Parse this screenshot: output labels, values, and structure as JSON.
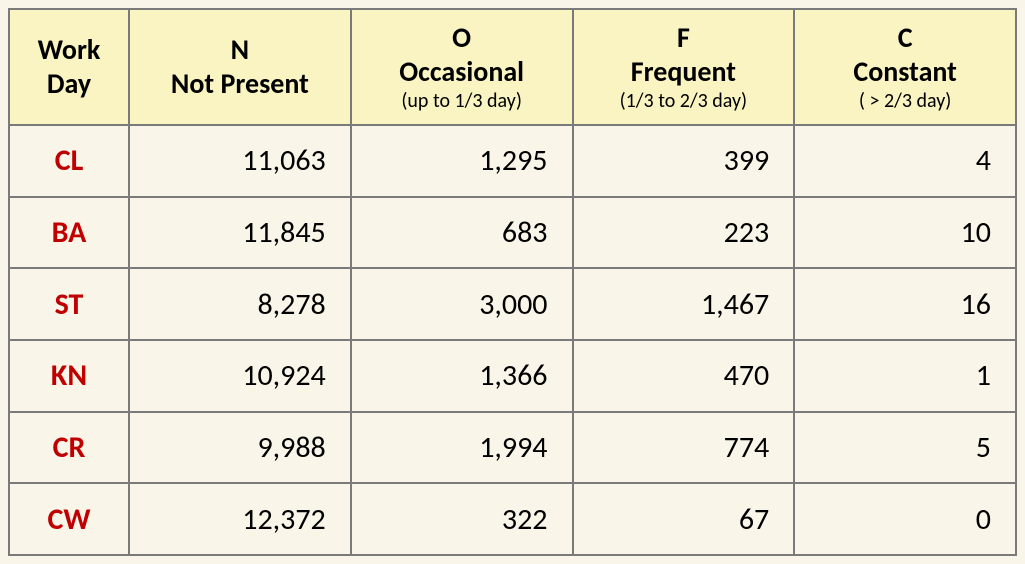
{
  "table": {
    "type": "table",
    "header_bg": "#f9f4c2",
    "border_color": "#7a7a7a",
    "row_label_color": "#c00000",
    "font_main_size": 30,
    "font_header_main_size": 28,
    "font_header_sub_size": 20,
    "columns": [
      {
        "main": "Work Day",
        "sub": null
      },
      {
        "main": "N",
        "label": "Not Present",
        "sub": null
      },
      {
        "main": "O",
        "label": "Occasional",
        "sub": "(up to 1/3 day)"
      },
      {
        "main": "F",
        "label": "Frequent",
        "sub": "(1/3 to 2/3 day)"
      },
      {
        "main": "C",
        "label": "Constant",
        "sub": "( > 2/3 day)"
      }
    ],
    "rows": [
      {
        "label": "CL",
        "n": "11,063",
        "o": "1,295",
        "f": "399",
        "c": "4"
      },
      {
        "label": "BA",
        "n": "11,845",
        "o": "683",
        "f": "223",
        "c": "10"
      },
      {
        "label": "ST",
        "n": "8,278",
        "o": "3,000",
        "f": "1,467",
        "c": "16"
      },
      {
        "label": "KN",
        "n": "10,924",
        "o": "1,366",
        "f": "470",
        "c": "1"
      },
      {
        "label": "CR",
        "n": "9,988",
        "o": "1,994",
        "f": "774",
        "c": "5"
      },
      {
        "label": "CW",
        "n": "12,372",
        "o": "322",
        "f": "67",
        "c": "0"
      }
    ]
  }
}
